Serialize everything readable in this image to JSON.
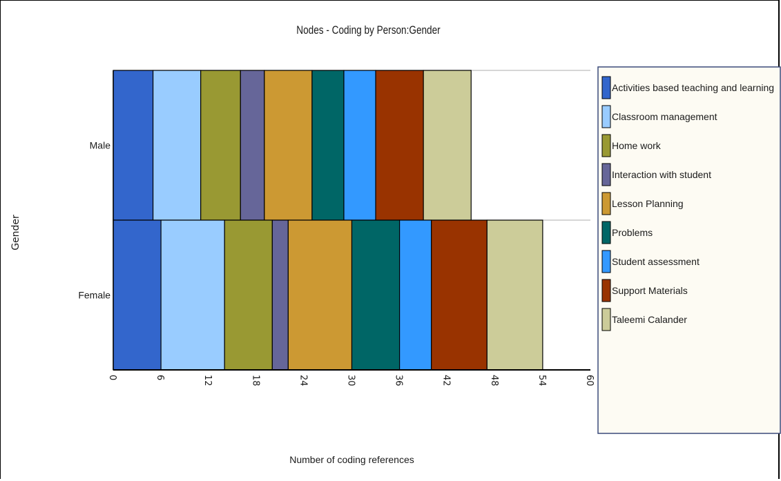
{
  "chart_data": {
    "type": "bar",
    "orientation": "horizontal",
    "stacked": true,
    "title": "Nodes - Coding by Person:Gender",
    "xlabel": "Number of coding references",
    "ylabel": "Gender",
    "categories": [
      "Male",
      "Female"
    ],
    "xlim": [
      0,
      60
    ],
    "xticks": [
      "0",
      "6",
      "12",
      "18",
      "24",
      "30",
      "36",
      "42",
      "48",
      "54",
      "60"
    ],
    "legend_position": "right",
    "series": [
      {
        "name": "Activities based teaching and learning",
        "color": "#3366cc",
        "values": [
          5,
          6
        ]
      },
      {
        "name": "Classroom management",
        "color": "#99ccff",
        "values": [
          6,
          8
        ]
      },
      {
        "name": "Home work",
        "color": "#999933",
        "values": [
          5,
          6
        ]
      },
      {
        "name": "Interaction with student",
        "color": "#666699",
        "values": [
          3,
          2
        ]
      },
      {
        "name": "Lesson Planning",
        "color": "#cc9933",
        "values": [
          6,
          8
        ]
      },
      {
        "name": "Problems",
        "color": "#006666",
        "values": [
          4,
          6
        ]
      },
      {
        "name": "Student assessment",
        "color": "#3399ff",
        "values": [
          4,
          4
        ]
      },
      {
        "name": "Support Materials",
        "color": "#993300",
        "values": [
          6,
          7
        ]
      },
      {
        "name": "Taleemi Calander",
        "color": "#cccc99",
        "values": [
          6,
          7
        ]
      }
    ]
  }
}
